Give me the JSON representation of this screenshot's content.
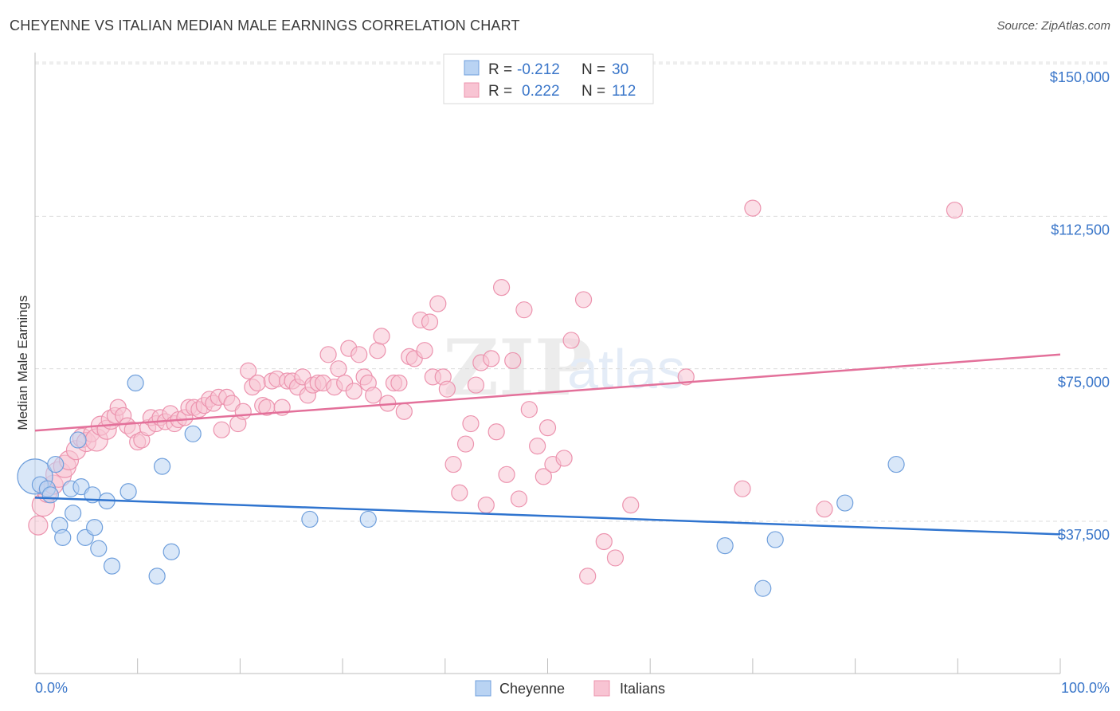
{
  "header": {
    "title": "CHEYENNE VS ITALIAN MEDIAN MALE EARNINGS CORRELATION CHART",
    "source": "Source: ZipAtlas.com"
  },
  "watermark": {
    "zip": "ZIP",
    "atlas": "atlas"
  },
  "colors": {
    "cheyenne_fill": "#b9d3f3",
    "cheyenne_stroke": "#6f9fdc",
    "cheyenne_line": "#2f74cf",
    "italians_fill": "#f8c4d3",
    "italians_stroke": "#ec93ae",
    "italians_line": "#e3709a",
    "tick_label": "#3a76c9"
  },
  "legend_box": {
    "rows": [
      {
        "r_label": "R = ",
        "r_value": "-0.212",
        "n_label": "N = ",
        "n_value": "30"
      },
      {
        "r_label": "R = ",
        "r_value": "0.222",
        "n_label": "N = ",
        "n_value": "112"
      }
    ]
  },
  "bottom_legend": [
    "Cheyenne",
    "Italians"
  ],
  "chart_data": {
    "type": "scatter",
    "title": "CHEYENNE VS ITALIAN MEDIAN MALE EARNINGS CORRELATION CHART",
    "xlabel": "",
    "ylabel": "Median Male Earnings",
    "xlim": [
      0,
      100
    ],
    "ylim": [
      0,
      155000
    ],
    "x_tick_labels": [
      "0.0%",
      "100.0%"
    ],
    "y_ticks": [
      37500,
      75000,
      112500,
      150000
    ],
    "y_tick_labels": [
      "$37,500",
      "$75,000",
      "$112,500",
      "$150,000"
    ],
    "grid": true,
    "legend_placement": "bottom-center",
    "series": [
      {
        "name": "Cheyenne",
        "r": -0.212,
        "n": 30,
        "trend": {
          "x": [
            0,
            100
          ],
          "y": [
            43300,
            34300
          ]
        },
        "points": [
          [
            0.0,
            48500,
            22
          ],
          [
            0.5,
            46500,
            10
          ],
          [
            1.2,
            45500,
            10
          ],
          [
            1.5,
            44000,
            10
          ],
          [
            2.0,
            51500,
            10
          ],
          [
            2.4,
            36500,
            10
          ],
          [
            2.7,
            33500,
            10
          ],
          [
            3.5,
            45500,
            10
          ],
          [
            3.7,
            39500,
            10
          ],
          [
            4.2,
            57500,
            10
          ],
          [
            4.5,
            46000,
            10
          ],
          [
            4.9,
            33500,
            10
          ],
          [
            5.6,
            44000,
            10
          ],
          [
            5.8,
            36000,
            10
          ],
          [
            6.2,
            30800,
            10
          ],
          [
            7.0,
            42500,
            10
          ],
          [
            7.5,
            26500,
            10
          ],
          [
            9.1,
            44800,
            10
          ],
          [
            9.8,
            71500,
            10
          ],
          [
            11.9,
            24000,
            10
          ],
          [
            12.4,
            51000,
            10
          ],
          [
            13.3,
            30000,
            10
          ],
          [
            15.4,
            59000,
            10
          ],
          [
            26.8,
            38000,
            10
          ],
          [
            32.5,
            38000,
            10
          ],
          [
            67.3,
            31500,
            10
          ],
          [
            71.0,
            21000,
            10
          ],
          [
            72.2,
            33000,
            10
          ],
          [
            79.0,
            42000,
            10
          ],
          [
            84.0,
            51500,
            10
          ]
        ]
      },
      {
        "name": "Italians",
        "r": 0.222,
        "n": 112,
        "trend": {
          "x": [
            0,
            100
          ],
          "y": [
            59800,
            78500
          ]
        },
        "points": [
          [
            0.3,
            36500,
            12
          ],
          [
            0.8,
            41500,
            14
          ],
          [
            1.2,
            44500,
            12
          ],
          [
            1.8,
            46500,
            12
          ],
          [
            2.3,
            49000,
            16
          ],
          [
            2.9,
            51000,
            14
          ],
          [
            3.3,
            52500,
            12
          ],
          [
            4.0,
            55000,
            12
          ],
          [
            4.6,
            58000,
            12
          ],
          [
            5.0,
            57000,
            12
          ],
          [
            5.5,
            59000,
            10
          ],
          [
            6.0,
            57500,
            14
          ],
          [
            6.4,
            61000,
            12
          ],
          [
            7.0,
            60000,
            12
          ],
          [
            7.4,
            62500,
            12
          ],
          [
            7.8,
            63500,
            10
          ],
          [
            8.1,
            65500,
            10
          ],
          [
            8.6,
            63500,
            10
          ],
          [
            9.0,
            61000,
            10
          ],
          [
            9.5,
            60000,
            10
          ],
          [
            10.0,
            57000,
            10
          ],
          [
            10.4,
            57500,
            10
          ],
          [
            11.0,
            60500,
            10
          ],
          [
            11.3,
            63000,
            10
          ],
          [
            11.8,
            61500,
            10
          ],
          [
            12.2,
            63000,
            10
          ],
          [
            12.7,
            62000,
            10
          ],
          [
            13.2,
            64000,
            10
          ],
          [
            13.6,
            61500,
            10
          ],
          [
            14.0,
            62500,
            10
          ],
          [
            14.6,
            63000,
            10
          ],
          [
            15.0,
            65500,
            10
          ],
          [
            15.5,
            65500,
            10
          ],
          [
            16.0,
            65000,
            10
          ],
          [
            16.5,
            66000,
            10
          ],
          [
            17.0,
            67500,
            10
          ],
          [
            17.4,
            66500,
            10
          ],
          [
            17.9,
            68000,
            10
          ],
          [
            18.2,
            60000,
            10
          ],
          [
            18.7,
            68000,
            10
          ],
          [
            19.2,
            66500,
            10
          ],
          [
            19.8,
            61500,
            10
          ],
          [
            20.3,
            64500,
            10
          ],
          [
            20.8,
            74500,
            10
          ],
          [
            21.2,
            70500,
            10
          ],
          [
            21.7,
            71500,
            10
          ],
          [
            22.2,
            66000,
            10
          ],
          [
            22.6,
            65500,
            10
          ],
          [
            23.1,
            72000,
            10
          ],
          [
            23.6,
            72500,
            10
          ],
          [
            24.1,
            65500,
            10
          ],
          [
            24.6,
            72000,
            10
          ],
          [
            25.1,
            72000,
            10
          ],
          [
            25.6,
            70500,
            10
          ],
          [
            26.1,
            73000,
            10
          ],
          [
            26.6,
            68500,
            10
          ],
          [
            27.1,
            71000,
            10
          ],
          [
            27.6,
            71500,
            10
          ],
          [
            28.1,
            71500,
            10
          ],
          [
            28.6,
            78500,
            10
          ],
          [
            29.2,
            70500,
            10
          ],
          [
            29.6,
            75000,
            10
          ],
          [
            30.2,
            71500,
            10
          ],
          [
            30.6,
            80000,
            10
          ],
          [
            31.1,
            69500,
            10
          ],
          [
            31.6,
            78500,
            10
          ],
          [
            32.1,
            73000,
            10
          ],
          [
            32.5,
            71500,
            10
          ],
          [
            33.0,
            68500,
            10
          ],
          [
            33.4,
            79500,
            10
          ],
          [
            33.8,
            83000,
            10
          ],
          [
            34.4,
            66500,
            10
          ],
          [
            35.0,
            71500,
            10
          ],
          [
            35.5,
            71500,
            10
          ],
          [
            36.0,
            64500,
            10
          ],
          [
            36.5,
            78000,
            10
          ],
          [
            37.0,
            77500,
            10
          ],
          [
            37.6,
            87000,
            10
          ],
          [
            38.0,
            79500,
            10
          ],
          [
            38.5,
            86500,
            10
          ],
          [
            38.8,
            73000,
            10
          ],
          [
            39.3,
            91000,
            10
          ],
          [
            39.8,
            73000,
            10
          ],
          [
            40.2,
            70000,
            10
          ],
          [
            40.8,
            51500,
            10
          ],
          [
            41.4,
            44500,
            10
          ],
          [
            42.0,
            56500,
            10
          ],
          [
            42.5,
            61500,
            10
          ],
          [
            43.0,
            71000,
            10
          ],
          [
            43.5,
            76500,
            10
          ],
          [
            44.0,
            41500,
            10
          ],
          [
            44.5,
            77500,
            10
          ],
          [
            45.0,
            59500,
            10
          ],
          [
            45.5,
            95000,
            10
          ],
          [
            46.0,
            49000,
            10
          ],
          [
            46.6,
            77000,
            10
          ],
          [
            47.2,
            43000,
            10
          ],
          [
            47.7,
            89500,
            10
          ],
          [
            48.2,
            65000,
            10
          ],
          [
            49.0,
            56000,
            10
          ],
          [
            49.6,
            48500,
            10
          ],
          [
            50.0,
            60500,
            10
          ],
          [
            50.5,
            51500,
            10
          ],
          [
            51.6,
            53000,
            10
          ],
          [
            52.3,
            82000,
            10
          ],
          [
            53.5,
            92000,
            10
          ],
          [
            53.9,
            24000,
            10
          ],
          [
            55.5,
            32500,
            10
          ],
          [
            56.6,
            28500,
            10
          ],
          [
            58.1,
            41500,
            10
          ],
          [
            63.5,
            73000,
            10
          ],
          [
            69.0,
            45500,
            10
          ],
          [
            70.0,
            114500,
            10
          ],
          [
            77.0,
            40500,
            10
          ],
          [
            89.7,
            114000,
            10
          ]
        ]
      }
    ]
  }
}
